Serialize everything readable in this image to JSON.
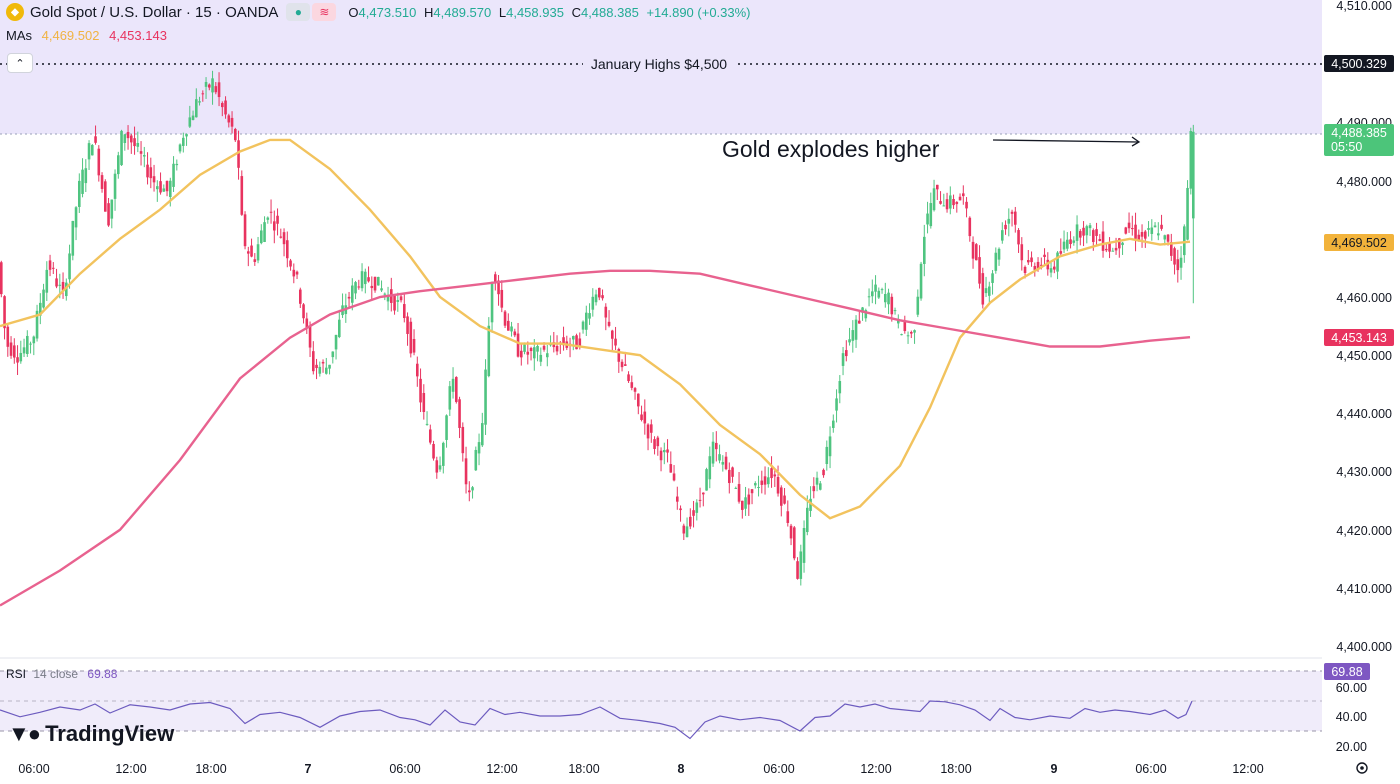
{
  "header": {
    "symbol_title": "Gold Spot / U.S. Dollar · 15 · OANDA",
    "ohlc": {
      "o_label": "O",
      "o_value": "4,473.510",
      "h_label": "H",
      "h_value": "4,489.570",
      "l_label": "L",
      "l_value": "4,458.935",
      "c_label": "C",
      "c_value": "4,488.385",
      "change": "+14.890 (+0.33%)"
    },
    "mas_label": "MAs",
    "ma_fast_value": "4,469.502",
    "ma_slow_value": "4,453.143"
  },
  "annotations": {
    "january_highs": "January Highs $4,500",
    "explodes": "Gold explodes higher"
  },
  "price_axis": {
    "ticks": [
      "4,510.000",
      "4,490.000",
      "4,480.000",
      "4,460.000",
      "4,450.000",
      "4,440.000",
      "4,430.000",
      "4,420.000",
      "4,410.000",
      "4,400.000"
    ],
    "labels": {
      "resistance": "4,500.329",
      "last_price": "4,488.385",
      "countdown": "05:50",
      "ma_fast": "4,469.502",
      "ma_slow": "4,453.143"
    }
  },
  "rsi": {
    "name": "RSI",
    "params": "14 close",
    "value": "69.88",
    "ticks": [
      "60.00",
      "40.00",
      "20.00"
    ],
    "upper": 70,
    "lower": 30,
    "mid": 50
  },
  "time_axis": [
    "06:00",
    "12:00",
    "18:00",
    "7",
    "06:00",
    "12:00",
    "18:00",
    "8",
    "06:00",
    "12:00",
    "18:00",
    "9",
    "06:00",
    "12:00"
  ],
  "branding": "TradingView",
  "colors": {
    "up": "#4fc480",
    "down": "#e8335f",
    "ma_fast": "#f2c35e",
    "ma_slow": "#e8628f",
    "zone": "#ebe6fb",
    "rsi_line": "#6c5bbf",
    "rsi_band": "#f0ecfa"
  },
  "chart_data": [
    {
      "type": "candlestick",
      "title": "Gold Spot / U.S. Dollar · 15 · OANDA",
      "ylim": [
        4398,
        4511
      ],
      "resistance_zone": [
        4488,
        4511
      ],
      "resistance_level": 4500.329,
      "last": {
        "open": 4473.51,
        "high": 4489.57,
        "low": 4458.935,
        "close": 4488.385
      },
      "price_path": [
        [
          0,
          4466
        ],
        [
          8,
          4452
        ],
        [
          20,
          4450
        ],
        [
          35,
          4453
        ],
        [
          50,
          4466
        ],
        [
          65,
          4460
        ],
        [
          80,
          4478
        ],
        [
          95,
          4488
        ],
        [
          110,
          4473
        ],
        [
          125,
          4489
        ],
        [
          140,
          4485
        ],
        [
          155,
          4480
        ],
        [
          170,
          4478
        ],
        [
          185,
          4488
        ],
        [
          200,
          4494
        ],
        [
          215,
          4497
        ],
        [
          225,
          4492
        ],
        [
          238,
          4487
        ],
        [
          245,
          4470
        ],
        [
          255,
          4466
        ],
        [
          270,
          4475
        ],
        [
          285,
          4470
        ],
        [
          300,
          4462
        ],
        [
          315,
          4448
        ],
        [
          330,
          4448
        ],
        [
          345,
          4458
        ],
        [
          360,
          4463
        ],
        [
          375,
          4463
        ],
        [
          390,
          4460
        ],
        [
          405,
          4458
        ],
        [
          415,
          4450
        ],
        [
          425,
          4440
        ],
        [
          440,
          4430
        ],
        [
          455,
          4447
        ],
        [
          470,
          4424
        ],
        [
          485,
          4440
        ],
        [
          495,
          4466
        ],
        [
          505,
          4457
        ],
        [
          520,
          4451
        ],
        [
          535,
          4450
        ],
        [
          550,
          4451
        ],
        [
          565,
          4452
        ],
        [
          580,
          4452
        ],
        [
          590,
          4458
        ],
        [
          600,
          4462
        ],
        [
          610,
          4454
        ],
        [
          625,
          4448
        ],
        [
          640,
          4441
        ],
        [
          655,
          4435
        ],
        [
          670,
          4432
        ],
        [
          685,
          4420
        ],
        [
          700,
          4424
        ],
        [
          715,
          4434
        ],
        [
          730,
          4430
        ],
        [
          745,
          4424
        ],
        [
          760,
          4428
        ],
        [
          775,
          4430
        ],
        [
          790,
          4422
        ],
        [
          800,
          4412
        ],
        [
          812,
          4426
        ],
        [
          825,
          4430
        ],
        [
          835,
          4440
        ],
        [
          845,
          4450
        ],
        [
          860,
          4456
        ],
        [
          875,
          4461
        ],
        [
          890,
          4460
        ],
        [
          900,
          4455
        ],
        [
          915,
          4453
        ],
        [
          925,
          4470
        ],
        [
          935,
          4478
        ],
        [
          950,
          4476
        ],
        [
          965,
          4477
        ],
        [
          975,
          4468
        ],
        [
          985,
          4460
        ],
        [
          995,
          4465
        ],
        [
          1005,
          4472
        ],
        [
          1015,
          4475
        ],
        [
          1025,
          4465
        ],
        [
          1040,
          4466
        ],
        [
          1055,
          4465
        ],
        [
          1070,
          4470
        ],
        [
          1085,
          4472
        ],
        [
          1100,
          4470
        ],
        [
          1115,
          4468
        ],
        [
          1130,
          4472
        ],
        [
          1145,
          4470
        ],
        [
          1160,
          4472
        ],
        [
          1172,
          4468
        ],
        [
          1180,
          4465
        ],
        [
          1188,
          4473
        ],
        [
          1192,
          4488
        ]
      ],
      "ma_fast_path": [
        [
          0,
          4455
        ],
        [
          40,
          4457
        ],
        [
          80,
          4464
        ],
        [
          120,
          4470
        ],
        [
          160,
          4475
        ],
        [
          200,
          4481
        ],
        [
          240,
          4485
        ],
        [
          270,
          4487
        ],
        [
          290,
          4487
        ],
        [
          330,
          4482
        ],
        [
          370,
          4475
        ],
        [
          410,
          4467
        ],
        [
          440,
          4460
        ],
        [
          480,
          4455
        ],
        [
          520,
          4452
        ],
        [
          560,
          4452
        ],
        [
          600,
          4451
        ],
        [
          640,
          4450
        ],
        [
          680,
          4445
        ],
        [
          720,
          4438
        ],
        [
          760,
          4433
        ],
        [
          800,
          4426
        ],
        [
          830,
          4422
        ],
        [
          860,
          4424
        ],
        [
          900,
          4431
        ],
        [
          930,
          4441
        ],
        [
          960,
          4453
        ],
        [
          990,
          4459
        ],
        [
          1020,
          4463
        ],
        [
          1060,
          4467
        ],
        [
          1100,
          4469
        ],
        [
          1130,
          4470
        ],
        [
          1160,
          4469
        ],
        [
          1190,
          4469.5
        ]
      ],
      "ma_slow_path": [
        [
          0,
          4407
        ],
        [
          60,
          4413
        ],
        [
          120,
          4420
        ],
        [
          180,
          4432
        ],
        [
          240,
          4446
        ],
        [
          290,
          4453
        ],
        [
          330,
          4457
        ],
        [
          380,
          4460
        ],
        [
          420,
          4461
        ],
        [
          470,
          4462
        ],
        [
          520,
          4463
        ],
        [
          570,
          4464
        ],
        [
          610,
          4464.5
        ],
        [
          650,
          4464.5
        ],
        [
          700,
          4464
        ],
        [
          750,
          4462
        ],
        [
          800,
          4460
        ],
        [
          850,
          4458
        ],
        [
          900,
          4456
        ],
        [
          950,
          4454.5
        ],
        [
          1000,
          4453
        ],
        [
          1050,
          4451.5
        ],
        [
          1100,
          4451.5
        ],
        [
          1150,
          4452.5
        ],
        [
          1190,
          4453.1
        ]
      ]
    },
    {
      "type": "line",
      "title": "RSI 14 close",
      "ylim": [
        15,
        75
      ],
      "values": [
        [
          0,
          58
        ],
        [
          20,
          49
        ],
        [
          40,
          55
        ],
        [
          60,
          62
        ],
        [
          80,
          58
        ],
        [
          95,
          66
        ],
        [
          110,
          54
        ],
        [
          130,
          65
        ],
        [
          150,
          62
        ],
        [
          170,
          58
        ],
        [
          190,
          66
        ],
        [
          210,
          68
        ],
        [
          230,
          60
        ],
        [
          245,
          40
        ],
        [
          260,
          52
        ],
        [
          280,
          55
        ],
        [
          300,
          48
        ],
        [
          320,
          35
        ],
        [
          340,
          50
        ],
        [
          360,
          56
        ],
        [
          380,
          58
        ],
        [
          400,
          48
        ],
        [
          415,
          45
        ],
        [
          430,
          38
        ],
        [
          445,
          58
        ],
        [
          460,
          42
        ],
        [
          475,
          38
        ],
        [
          490,
          60
        ],
        [
          505,
          52
        ],
        [
          520,
          55
        ],
        [
          540,
          50
        ],
        [
          560,
          50
        ],
        [
          580,
          52
        ],
        [
          600,
          62
        ],
        [
          620,
          47
        ],
        [
          640,
          44
        ],
        [
          660,
          40
        ],
        [
          675,
          35
        ],
        [
          690,
          20
        ],
        [
          705,
          42
        ],
        [
          720,
          50
        ],
        [
          740,
          45
        ],
        [
          760,
          48
        ],
        [
          780,
          44
        ],
        [
          800,
          30
        ],
        [
          815,
          48
        ],
        [
          830,
          50
        ],
        [
          845,
          66
        ],
        [
          860,
          62
        ],
        [
          875,
          66
        ],
        [
          890,
          60
        ],
        [
          905,
          58
        ],
        [
          920,
          56
        ],
        [
          930,
          70
        ],
        [
          945,
          69
        ],
        [
          960,
          65
        ],
        [
          975,
          58
        ],
        [
          990,
          44
        ],
        [
          1000,
          60
        ],
        [
          1015,
          48
        ],
        [
          1030,
          45
        ],
        [
          1050,
          50
        ],
        [
          1070,
          47
        ],
        [
          1085,
          60
        ],
        [
          1100,
          55
        ],
        [
          1115,
          58
        ],
        [
          1130,
          56
        ],
        [
          1150,
          52
        ],
        [
          1165,
          58
        ],
        [
          1178,
          47
        ],
        [
          1186,
          52
        ],
        [
          1192,
          69.9
        ]
      ]
    }
  ]
}
